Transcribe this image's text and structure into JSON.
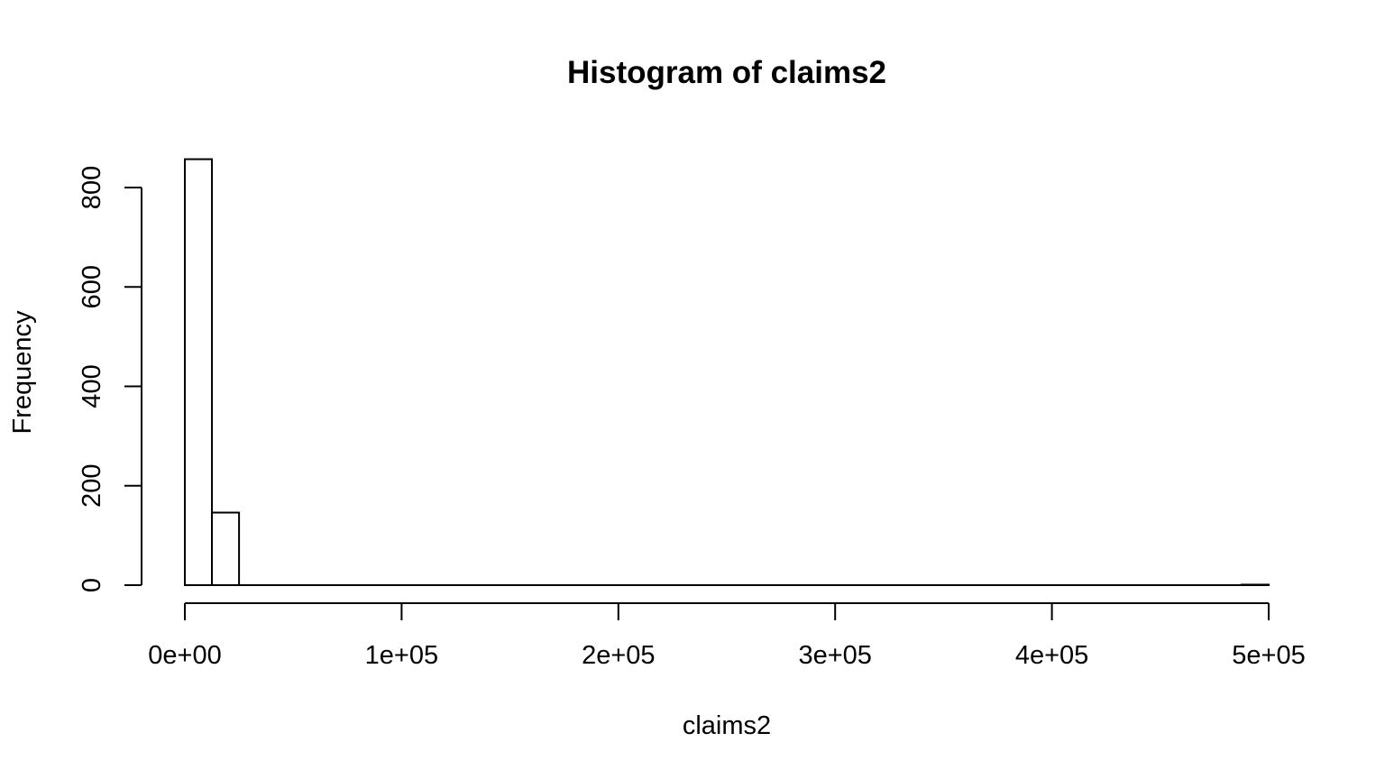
{
  "chart_data": {
    "type": "bar",
    "title": "Histogram of claims2",
    "xlabel": "claims2",
    "ylabel": "Frequency",
    "xlim": [
      0,
      500000
    ],
    "ylim": [
      0,
      860
    ],
    "bin_width": 12500,
    "bins": [
      {
        "start": 0,
        "end": 12500,
        "count": 857
      },
      {
        "start": 12500,
        "end": 25000,
        "count": 146
      },
      {
        "start": 25000,
        "end": 37500,
        "count": 0
      },
      {
        "start": 37500,
        "end": 50000,
        "count": 0
      },
      {
        "start": 50000,
        "end": 62500,
        "count": 0
      },
      {
        "start": 62500,
        "end": 75000,
        "count": 0
      },
      {
        "start": 75000,
        "end": 87500,
        "count": 0
      },
      {
        "start": 87500,
        "end": 100000,
        "count": 0
      },
      {
        "start": 100000,
        "end": 112500,
        "count": 0
      },
      {
        "start": 112500,
        "end": 125000,
        "count": 0
      },
      {
        "start": 125000,
        "end": 137500,
        "count": 0
      },
      {
        "start": 137500,
        "end": 150000,
        "count": 0
      },
      {
        "start": 150000,
        "end": 162500,
        "count": 0
      },
      {
        "start": 162500,
        "end": 175000,
        "count": 0
      },
      {
        "start": 175000,
        "end": 187500,
        "count": 0
      },
      {
        "start": 187500,
        "end": 200000,
        "count": 0
      },
      {
        "start": 200000,
        "end": 212500,
        "count": 0
      },
      {
        "start": 212500,
        "end": 225000,
        "count": 0
      },
      {
        "start": 225000,
        "end": 237500,
        "count": 0
      },
      {
        "start": 237500,
        "end": 250000,
        "count": 0
      },
      {
        "start": 250000,
        "end": 262500,
        "count": 0
      },
      {
        "start": 262500,
        "end": 275000,
        "count": 0
      },
      {
        "start": 275000,
        "end": 287500,
        "count": 0
      },
      {
        "start": 287500,
        "end": 300000,
        "count": 0
      },
      {
        "start": 300000,
        "end": 312500,
        "count": 0
      },
      {
        "start": 312500,
        "end": 325000,
        "count": 0
      },
      {
        "start": 325000,
        "end": 337500,
        "count": 0
      },
      {
        "start": 337500,
        "end": 350000,
        "count": 0
      },
      {
        "start": 350000,
        "end": 362500,
        "count": 0
      },
      {
        "start": 362500,
        "end": 375000,
        "count": 0
      },
      {
        "start": 375000,
        "end": 387500,
        "count": 0
      },
      {
        "start": 387500,
        "end": 400000,
        "count": 0
      },
      {
        "start": 400000,
        "end": 412500,
        "count": 0
      },
      {
        "start": 412500,
        "end": 425000,
        "count": 0
      },
      {
        "start": 425000,
        "end": 437500,
        "count": 0
      },
      {
        "start": 437500,
        "end": 450000,
        "count": 0
      },
      {
        "start": 450000,
        "end": 462500,
        "count": 0
      },
      {
        "start": 462500,
        "end": 475000,
        "count": 0
      },
      {
        "start": 475000,
        "end": 487500,
        "count": 0
      },
      {
        "start": 487500,
        "end": 500000,
        "count": 1
      }
    ],
    "x_ticks": [
      {
        "value": 0,
        "label": "0e+00"
      },
      {
        "value": 100000,
        "label": "1e+05"
      },
      {
        "value": 200000,
        "label": "2e+05"
      },
      {
        "value": 300000,
        "label": "3e+05"
      },
      {
        "value": 400000,
        "label": "4e+05"
      },
      {
        "value": 500000,
        "label": "5e+05"
      }
    ],
    "y_ticks": [
      {
        "value": 0,
        "label": "0"
      },
      {
        "value": 200,
        "label": "200"
      },
      {
        "value": 400,
        "label": "400"
      },
      {
        "value": 600,
        "label": "600"
      },
      {
        "value": 800,
        "label": "800"
      }
    ],
    "grid": false,
    "legend": "none",
    "colors": {
      "bar_fill": "#ffffff",
      "bar_stroke": "#000000",
      "axis": "#000000",
      "text": "#000000"
    }
  }
}
